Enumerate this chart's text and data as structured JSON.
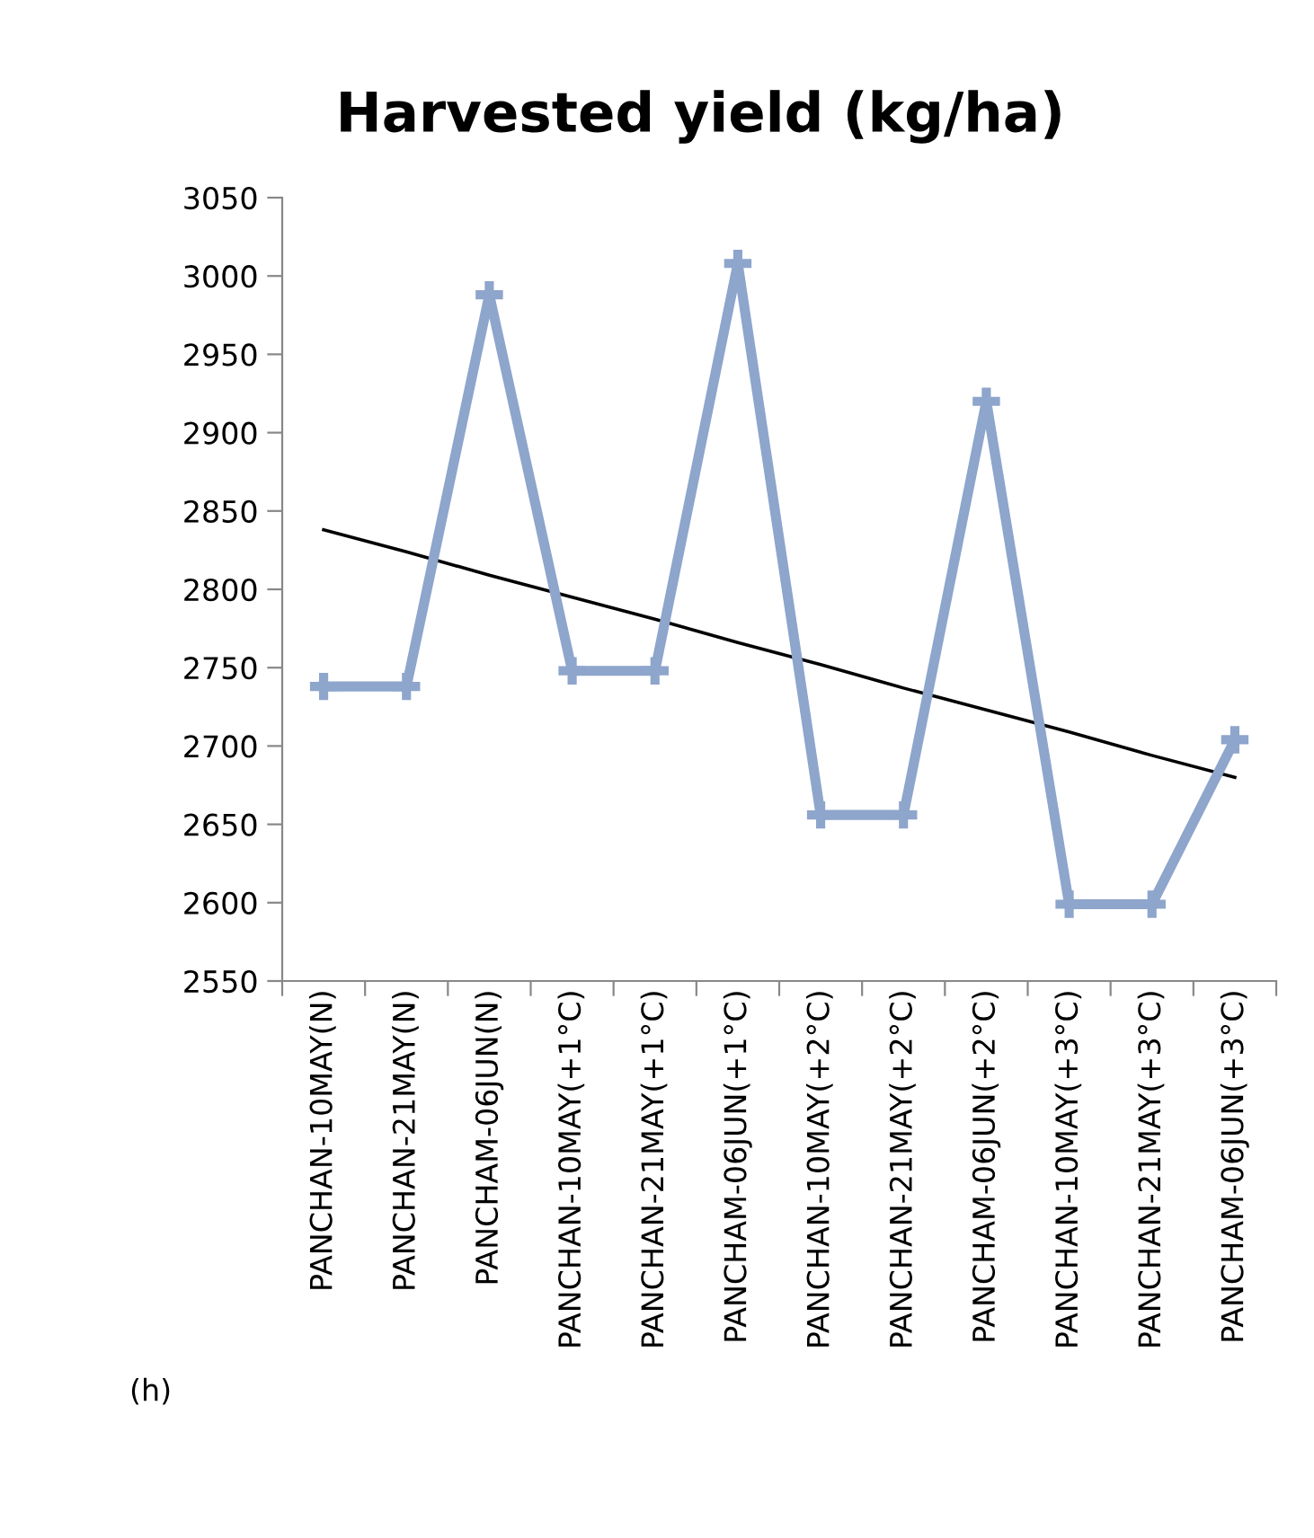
{
  "chart_data": {
    "type": "line",
    "title": "Harvested yield (kg/ha)",
    "categories": [
      "PANCHAN-10MAY(N)",
      "PANCHAN-21MAY(N)",
      "PANCHAM-06JUN(N)",
      "PANCHAN-10MAY(+1°C)",
      "PANCHAN-21MAY(+1°C)",
      "PANCHAM-06JUN(+1°C)",
      "PANCHAN-10MAY(+2°C)",
      "PANCHAN-21MAY(+2°C)",
      "PANCHAM-06JUN(+2°C)",
      "PANCHAN-10MAY(+3°C)",
      "PANCHAN-21MAY(+3°C)",
      "PANCHAM-06JUN(+3°C)"
    ],
    "series": [
      {
        "color": "#8ea5cc",
        "marker": "cross",
        "values": [
          2738,
          2738,
          2988,
          2748,
          2748,
          3008,
          2656,
          2656,
          2920,
          2599,
          2599,
          2704
        ]
      },
      {
        "color": "#000000",
        "marker": "none",
        "values": [
          2838,
          2824,
          2809,
          2795,
          2781,
          2766,
          2752,
          2737,
          2723,
          2709,
          2694,
          2680
        ]
      }
    ],
    "ylim": [
      2550,
      3050
    ],
    "yticks": [
      2550,
      2600,
      2650,
      2700,
      2750,
      2800,
      2850,
      2900,
      2950,
      3000,
      3050
    ],
    "grid": false,
    "legend": false,
    "annotations": [
      "(h)"
    ]
  }
}
